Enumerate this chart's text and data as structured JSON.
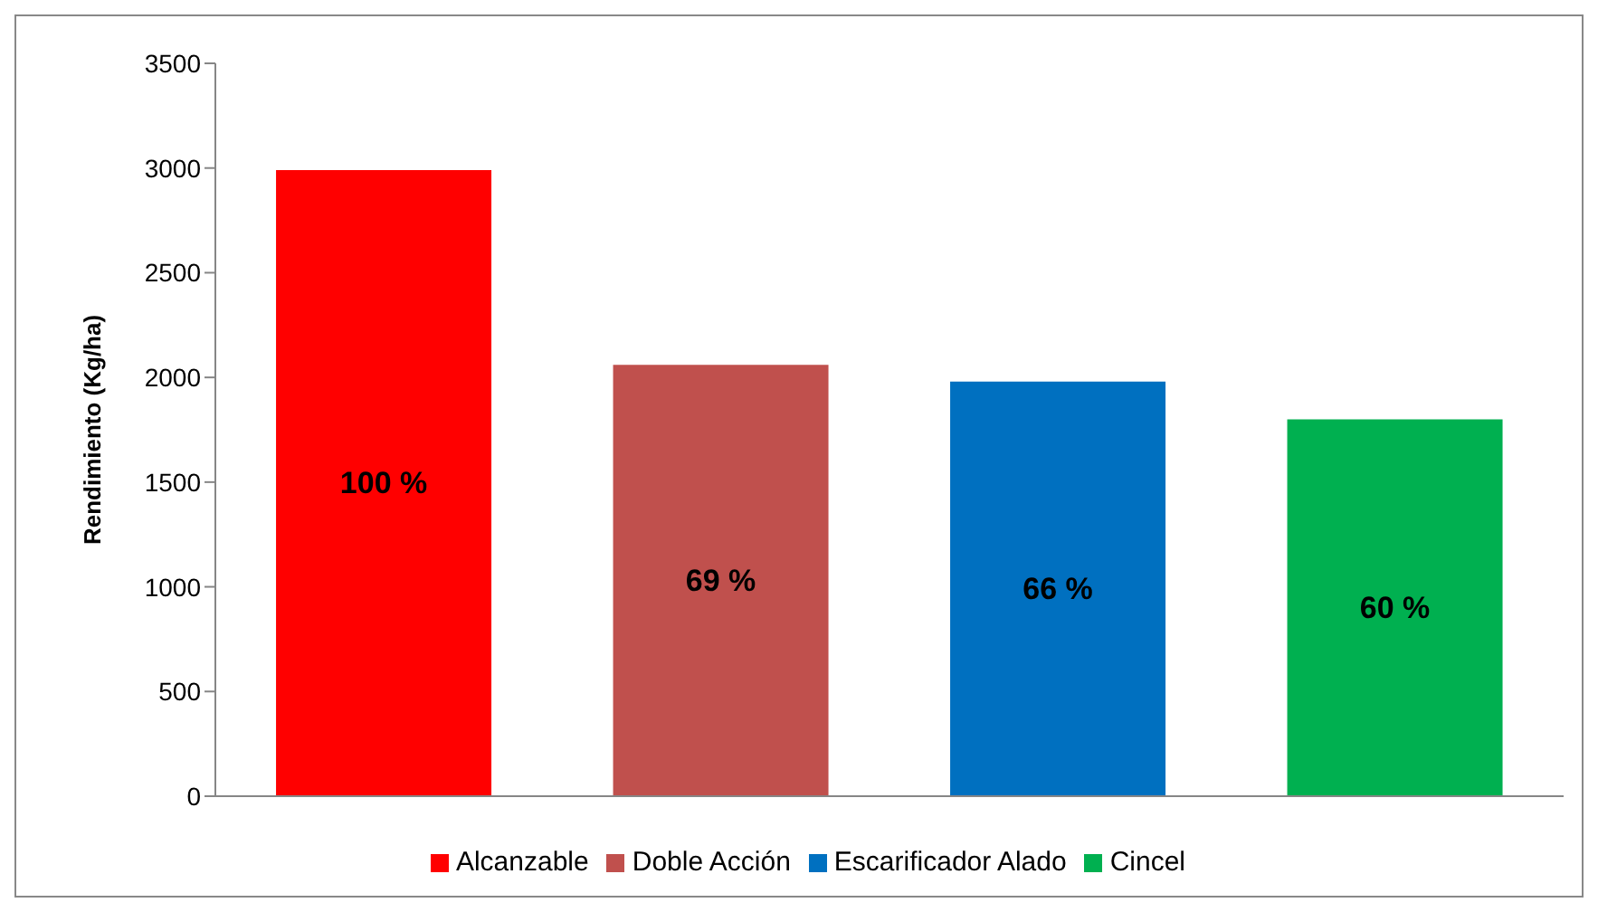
{
  "chart_data": {
    "type": "bar",
    "ylabel": "Rendimiento (Kg/ha)",
    "categories": [
      null,
      null,
      null,
      null
    ],
    "series": [
      {
        "name": "Alcanzable",
        "color": "#ff0000",
        "values": [
          2990,
          null,
          null,
          null
        ]
      },
      {
        "name": "Doble Acción",
        "color": "#c0504d",
        "values": [
          null,
          2060,
          null,
          null
        ]
      },
      {
        "name": "Escarificador Alado",
        "color": "#0070c0",
        "values": [
          null,
          null,
          1980,
          null
        ]
      },
      {
        "name": "Cincel",
        "color": "#00b050",
        "values": [
          null,
          null,
          null,
          1800
        ]
      }
    ],
    "annotations": [
      "100 %",
      "69 %",
      "66 %",
      "60 %"
    ],
    "stacked": true,
    "ylim": [
      0,
      3500
    ],
    "yticks": [
      0,
      500,
      1000,
      1500,
      2000,
      2500,
      3000,
      3500
    ],
    "grid": false,
    "legend": "bottom",
    "tick_labels": "y"
  }
}
